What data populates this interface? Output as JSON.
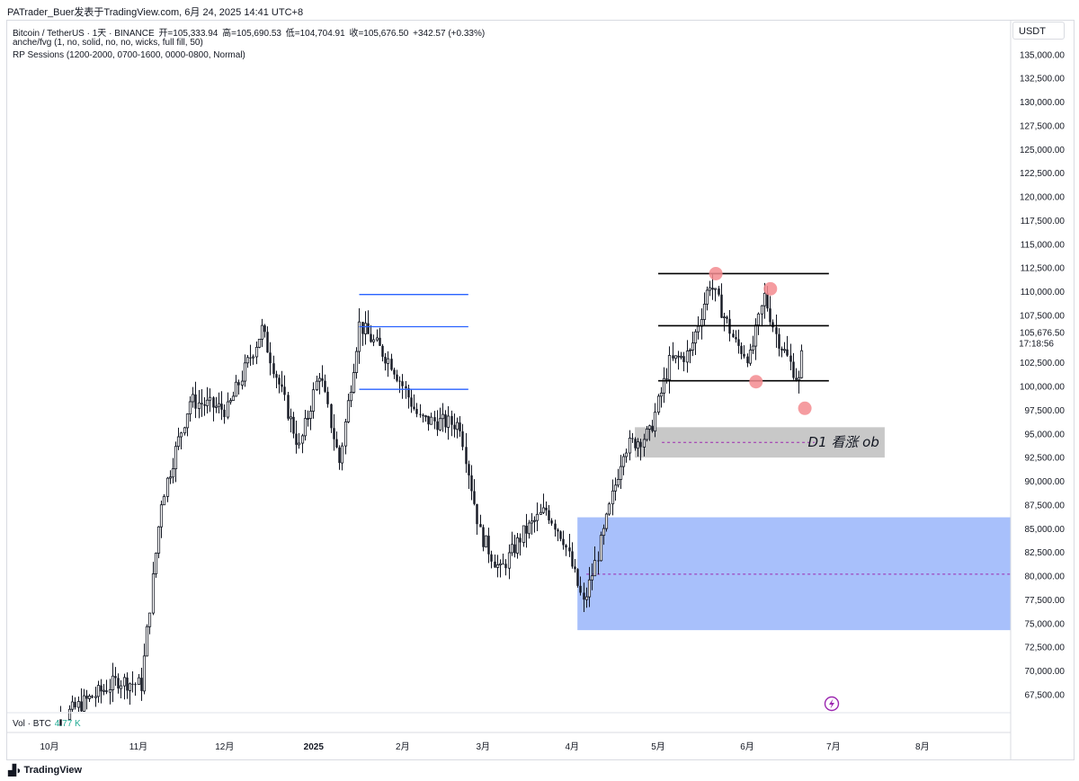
{
  "header": {
    "publisher": "PATrader_Buer发表于TradingView.com",
    "datetime": "6月 24, 2025 14:41 UTC+8"
  },
  "legend": {
    "symbol": "Bitcoin / TetherUS · 1天 · BINANCE",
    "open": "开=105,333.94",
    "high": "高=105,690.53",
    "low": "低=104,704.91",
    "close": "收=105,676.50",
    "change": "+342.57 (+0.33%)",
    "indicator1": "anche/fvg (1, no, solid, no, no, wicks, full fill, 50)",
    "indicator2": "RP Sessions (1200-2000, 0700-1600, 0000-0800, Normal)"
  },
  "currency": "USDT",
  "volume": {
    "label": "Vol · BTC",
    "value": "4.77 K"
  },
  "footer": {
    "logo_icon": "tradingview-logo-icon",
    "brand": "TradingView"
  },
  "annotations": {
    "ob_label": "D1 看涨 ob",
    "lightning_icon": "lightning-icon"
  },
  "colors": {
    "blue_zone": "#a8c0fb",
    "gray_zone": "#c8c8c8",
    "blue_levels": "#2962ff",
    "range_lines": "#000000",
    "marker": "#f38b8f",
    "midline": "#9c27b0"
  },
  "chart_data": {
    "type": "candlestick",
    "x_axis": {
      "ticks": [
        "10月",
        "11月",
        "12月",
        "2025",
        "2月",
        "3月",
        "4月",
        "5月",
        "6月",
        "7月",
        "8月"
      ]
    },
    "y_axis": {
      "ticks": [
        "135,000.00",
        "132,500.00",
        "130,000.00",
        "127,500.00",
        "125,000.00",
        "122,500.00",
        "120,000.00",
        "117,500.00",
        "115,000.00",
        "112,500.00",
        "110,000.00",
        "107,500.00",
        "102,500.00",
        "100,000.00",
        "97,500.00",
        "95,000.00",
        "92,500.00",
        "90,000.00",
        "87,500.00",
        "85,000.00",
        "82,500.00",
        "80,000.00",
        "77,500.00",
        "75,000.00",
        "72,500.00",
        "70,000.00",
        "67,500.00"
      ],
      "range": [
        65000,
        136500
      ]
    },
    "last_price": {
      "value": "105,676.50",
      "countdown": "17:18:56"
    },
    "path": [
      [
        "2024-10-01",
        63500
      ],
      [
        "2024-10-15",
        66500
      ],
      [
        "2024-10-28",
        69000
      ],
      [
        "2024-11-05",
        68500
      ],
      [
        "2024-11-12",
        88000
      ],
      [
        "2024-11-22",
        98500
      ],
      [
        "2024-12-05",
        97500
      ],
      [
        "2024-12-17",
        106000
      ],
      [
        "2024-12-30",
        93500
      ],
      [
        "2025-01-06",
        101500
      ],
      [
        "2025-01-13",
        92000
      ],
      [
        "2025-01-20",
        106500
      ],
      [
        "2025-01-31",
        102500
      ],
      [
        "2025-02-10",
        96500
      ],
      [
        "2025-02-24",
        96000
      ],
      [
        "2025-03-03",
        84500
      ],
      [
        "2025-03-10",
        80500
      ],
      [
        "2025-03-18",
        84500
      ],
      [
        "2025-03-26",
        87000
      ],
      [
        "2025-04-01",
        84000
      ],
      [
        "2025-04-08",
        77000
      ],
      [
        "2025-04-15",
        84500
      ],
      [
        "2025-04-22",
        93500
      ],
      [
        "2025-05-01",
        95000
      ],
      [
        "2025-05-08",
        102500
      ],
      [
        "2025-05-15",
        103500
      ],
      [
        "2025-05-22",
        111000
      ],
      [
        "2025-05-31",
        104500
      ],
      [
        "2025-06-05",
        103000
      ],
      [
        "2025-06-10",
        109500
      ],
      [
        "2025-06-14",
        105500
      ],
      [
        "2025-06-22",
        100500
      ],
      [
        "2025-06-24",
        105676
      ]
    ],
    "blue_levels": {
      "x_start": "2025-01-20",
      "x_end": "2025-02-27",
      "prices": [
        109700,
        106300,
        99700
      ]
    },
    "range_lines": {
      "x_start": "2025-05-01",
      "x_end": "2025-07-01",
      "prices": [
        111900,
        106400,
        100600
      ]
    },
    "markers": [
      {
        "date": "2025-05-22",
        "price": 111900
      },
      {
        "date": "2025-06-10",
        "price": 110300
      },
      {
        "date": "2025-06-05",
        "price": 100500
      },
      {
        "date": "2025-06-22",
        "price": 97700
      }
    ],
    "zones": [
      {
        "name": "gray-ob",
        "x_start": "2025-04-26",
        "x_end": "2025-07-22",
        "top": 95700,
        "bottom": 92500,
        "mid": 94100,
        "label": "D1 看涨 ob"
      },
      {
        "name": "blue-fvg",
        "x_start": "2025-04-06",
        "x_end": "2025-12-31",
        "top": 86200,
        "bottom": 74300,
        "mid": 80200
      }
    ]
  }
}
